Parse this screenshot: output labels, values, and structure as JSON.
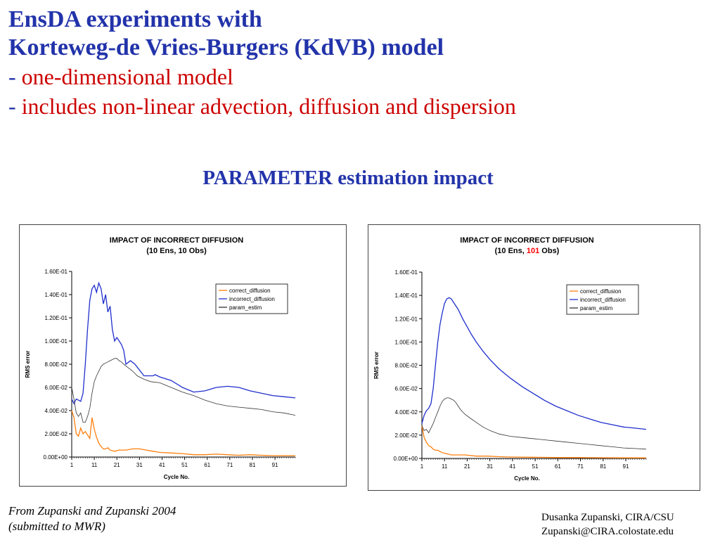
{
  "slide": {
    "title_line1": "EnsDA experiments with",
    "title_line2": "Korteweg-de Vries-Burgers  (KdVB) model",
    "bullet1_dash": "- ",
    "bullet1_text": "one-dimensional model",
    "bullet2_dash": "- ",
    "bullet2_text": "includes non-linear advection, diffusion and dispersion",
    "subtitle": "PARAMETER estimation impact",
    "footer_left_line1": "From Zupanski and Zupanski 2004",
    "footer_left_line2": "(submitted to MWR)",
    "footer_right_line1": "Dusanka Zupanski,  CIRA/CSU",
    "footer_right_line2": "Zupanski@CIRA.colostate.edu"
  },
  "colors": {
    "title_blue": "#2233aa",
    "bullet_red": "#cc0000",
    "highlight_red": "#ff0000"
  },
  "chart_data": [
    {
      "type": "line",
      "title_line1": "IMPACT OF INCORRECT DIFFUSION",
      "title_line2_parts": [
        "(10 Ens, ",
        "10",
        " Obs)"
      ],
      "highlight_middle": false,
      "xlabel": "Cycle No.",
      "ylabel": "RMS error",
      "xlim": [
        1,
        100
      ],
      "ylim": [
        0,
        0.16
      ],
      "y_ticks": [
        "0.00E+00",
        "2.00E-02",
        "4.00E-02",
        "6.00E-02",
        "8.00E-02",
        "1.00E-01",
        "1.20E-01",
        "1.40E-01",
        "1.60E-01"
      ],
      "x_ticks": [
        "1",
        "11",
        "21",
        "31",
        "41",
        "51",
        "61",
        "71",
        "81",
        "91"
      ],
      "legend_position": "top-right",
      "grid": false,
      "series": [
        {
          "name": "correct_diffusion",
          "color": "#ff7f0e",
          "x": [
            1,
            2,
            3,
            4,
            5,
            6,
            7,
            8,
            9,
            10,
            11,
            12,
            13,
            14,
            15,
            16,
            17,
            18,
            20,
            22,
            25,
            28,
            31,
            34,
            37,
            40,
            45,
            50,
            55,
            60,
            65,
            70,
            75,
            80,
            85,
            90,
            95,
            100
          ],
          "y": [
            0.04,
            0.034,
            0.02,
            0.018,
            0.025,
            0.02,
            0.022,
            0.019,
            0.016,
            0.034,
            0.024,
            0.017,
            0.012,
            0.009,
            0.007,
            0.007,
            0.008,
            0.006,
            0.005,
            0.006,
            0.006,
            0.007,
            0.007,
            0.006,
            0.005,
            0.004,
            0.0035,
            0.003,
            0.002,
            0.002,
            0.0025,
            0.002,
            0.0015,
            0.002,
            0.0015,
            0.0012,
            0.0012,
            0.0012
          ]
        },
        {
          "name": "incorrect_diffusion",
          "color": "#1f2fcc",
          "x": [
            1,
            2,
            3,
            4,
            5,
            6,
            7,
            8,
            9,
            10,
            11,
            12,
            13,
            14,
            15,
            16,
            17,
            18,
            19,
            20,
            21,
            22,
            23,
            24,
            25,
            27,
            29,
            31,
            33,
            35,
            37,
            38,
            40,
            45,
            50,
            55,
            60,
            65,
            70,
            75,
            80,
            85,
            90,
            95,
            100
          ],
          "y": [
            0.05,
            0.046,
            0.05,
            0.049,
            0.048,
            0.055,
            0.08,
            0.11,
            0.135,
            0.145,
            0.148,
            0.142,
            0.15,
            0.145,
            0.132,
            0.14,
            0.125,
            0.13,
            0.11,
            0.1,
            0.103,
            0.1,
            0.097,
            0.092,
            0.08,
            0.083,
            0.08,
            0.075,
            0.07,
            0.07,
            0.07,
            0.071,
            0.069,
            0.066,
            0.06,
            0.056,
            0.057,
            0.06,
            0.061,
            0.06,
            0.057,
            0.055,
            0.053,
            0.052,
            0.051
          ]
        },
        {
          "name": "param_estim",
          "color": "#333333",
          "x": [
            1,
            2,
            3,
            4,
            5,
            6,
            7,
            8,
            9,
            10,
            11,
            12,
            13,
            14,
            15,
            16,
            17,
            18,
            19,
            20,
            21,
            22,
            23,
            24,
            26,
            28,
            30,
            33,
            36,
            40,
            45,
            50,
            55,
            60,
            65,
            70,
            75,
            80,
            85,
            90,
            95,
            100
          ],
          "y": [
            0.06,
            0.05,
            0.038,
            0.035,
            0.038,
            0.03,
            0.03,
            0.035,
            0.042,
            0.055,
            0.065,
            0.07,
            0.074,
            0.078,
            0.08,
            0.081,
            0.082,
            0.083,
            0.084,
            0.085,
            0.085,
            0.083,
            0.082,
            0.08,
            0.077,
            0.074,
            0.07,
            0.067,
            0.065,
            0.064,
            0.06,
            0.056,
            0.053,
            0.049,
            0.046,
            0.044,
            0.043,
            0.042,
            0.041,
            0.039,
            0.038,
            0.036
          ]
        }
      ]
    },
    {
      "type": "line",
      "title_line1": "IMPACT OF INCORRECT DIFFUSION",
      "title_line2_parts": [
        "(10 Ens, ",
        "101",
        " Obs)"
      ],
      "highlight_middle": true,
      "xlabel": "Cycle No.",
      "ylabel": "RMS error",
      "xlim": [
        1,
        100
      ],
      "ylim": [
        0,
        0.16
      ],
      "y_ticks": [
        "0.00E+00",
        "2.00E-02",
        "4.00E-02",
        "6.00E-02",
        "8.00E-02",
        "1.00E-01",
        "1.20E-01",
        "1.40E-01",
        "1.60E-01"
      ],
      "x_ticks": [
        "1",
        "11",
        "21",
        "31",
        "41",
        "51",
        "61",
        "71",
        "81",
        "91"
      ],
      "legend_position": "top-right",
      "grid": false,
      "series": [
        {
          "name": "correct_diffusion",
          "color": "#ff7f0e",
          "x": [
            1,
            2,
            3,
            4,
            5,
            6,
            7,
            8,
            9,
            10,
            12,
            14,
            16,
            18,
            20,
            25,
            30,
            35,
            40,
            50,
            60,
            70,
            80,
            90,
            100
          ],
          "y": [
            0.028,
            0.018,
            0.014,
            0.011,
            0.01,
            0.008,
            0.007,
            0.007,
            0.006,
            0.005,
            0.004,
            0.003,
            0.003,
            0.003,
            0.003,
            0.002,
            0.002,
            0.0015,
            0.0012,
            0.001,
            0.0008,
            0.0007,
            0.0006,
            0.0005,
            0.0005
          ]
        },
        {
          "name": "incorrect_diffusion",
          "color": "#1f2fcc",
          "x": [
            1,
            2,
            3,
            4,
            5,
            6,
            7,
            8,
            9,
            10,
            11,
            12,
            13,
            14,
            15,
            16,
            17,
            19,
            21,
            23,
            25,
            28,
            31,
            35,
            40,
            45,
            50,
            55,
            60,
            65,
            70,
            75,
            80,
            85,
            90,
            95,
            100
          ],
          "y": [
            0.03,
            0.037,
            0.041,
            0.043,
            0.047,
            0.06,
            0.08,
            0.1,
            0.115,
            0.125,
            0.133,
            0.137,
            0.138,
            0.137,
            0.134,
            0.131,
            0.128,
            0.12,
            0.113,
            0.106,
            0.1,
            0.092,
            0.085,
            0.077,
            0.069,
            0.062,
            0.056,
            0.05,
            0.045,
            0.041,
            0.037,
            0.034,
            0.031,
            0.029,
            0.027,
            0.026,
            0.025
          ]
        },
        {
          "name": "param_estim",
          "color": "#333333",
          "x": [
            1,
            2,
            3,
            4,
            5,
            6,
            7,
            8,
            9,
            10,
            11,
            12,
            13,
            14,
            15,
            16,
            17,
            18,
            20,
            22,
            25,
            28,
            31,
            35,
            40,
            45,
            50,
            55,
            60,
            65,
            70,
            75,
            80,
            85,
            90,
            95,
            100
          ],
          "y": [
            0.028,
            0.024,
            0.025,
            0.022,
            0.026,
            0.03,
            0.035,
            0.04,
            0.045,
            0.049,
            0.051,
            0.052,
            0.052,
            0.051,
            0.05,
            0.048,
            0.045,
            0.042,
            0.038,
            0.035,
            0.031,
            0.027,
            0.024,
            0.021,
            0.019,
            0.018,
            0.017,
            0.016,
            0.015,
            0.014,
            0.013,
            0.012,
            0.011,
            0.01,
            0.009,
            0.0085,
            0.008
          ]
        }
      ]
    }
  ]
}
